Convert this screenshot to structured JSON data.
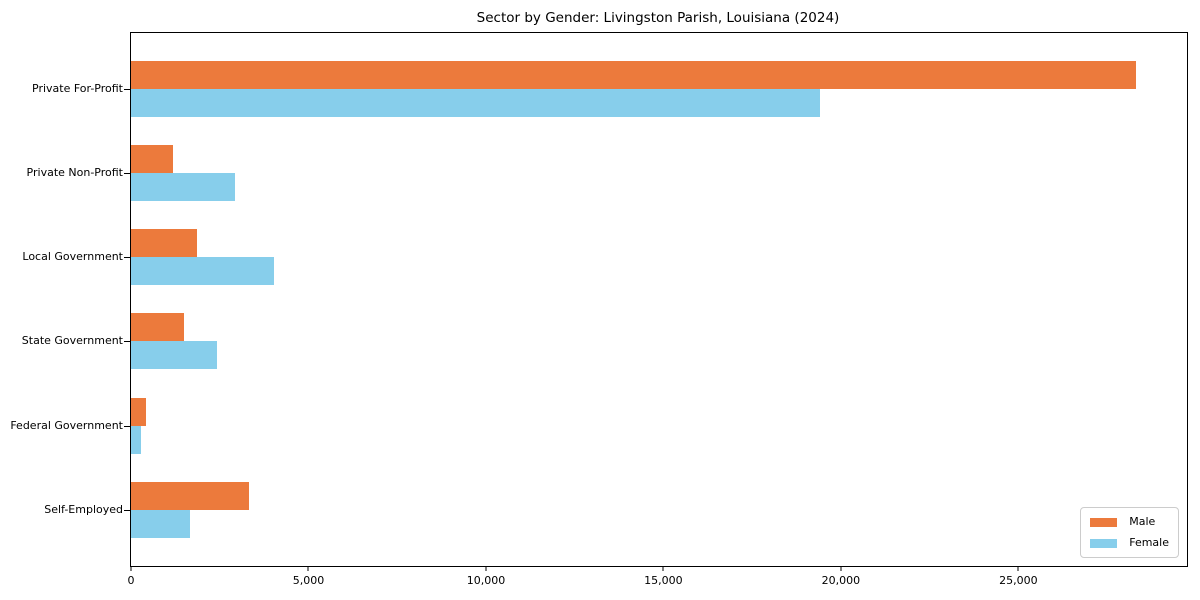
{
  "title": "Sector by Gender: Livingston Parish, Louisiana (2024)",
  "colors": {
    "male": "#EC7A3C",
    "female": "#87CEEB",
    "axis": "#000000",
    "legend_border": "#cccccc",
    "background": "#ffffff"
  },
  "chart_data": {
    "type": "bar",
    "orientation": "horizontal",
    "title": "Sector by Gender: Livingston Parish, Louisiana (2024)",
    "categories": [
      "Private For-Profit",
      "Private Non-Profit",
      "Local Government",
      "State Government",
      "Federal Government",
      "Self-Employed"
    ],
    "series": [
      {
        "name": "Male",
        "color": "#EC7A3C",
        "values": [
          28310,
          1190,
          1860,
          1500,
          430,
          3330
        ]
      },
      {
        "name": "Female",
        "color": "#87CEEB",
        "values": [
          19410,
          2940,
          4030,
          2420,
          290,
          1670
        ]
      }
    ],
    "xlabel": "",
    "ylabel": "",
    "xlim": [
      0,
      29750
    ],
    "xticks": [
      0,
      5000,
      10000,
      15000,
      20000,
      25000
    ],
    "xtick_labels": [
      "0",
      "5,000",
      "10,000",
      "15,000",
      "20,000",
      "25,000"
    ],
    "grid": false,
    "legend_position": "lower right"
  }
}
